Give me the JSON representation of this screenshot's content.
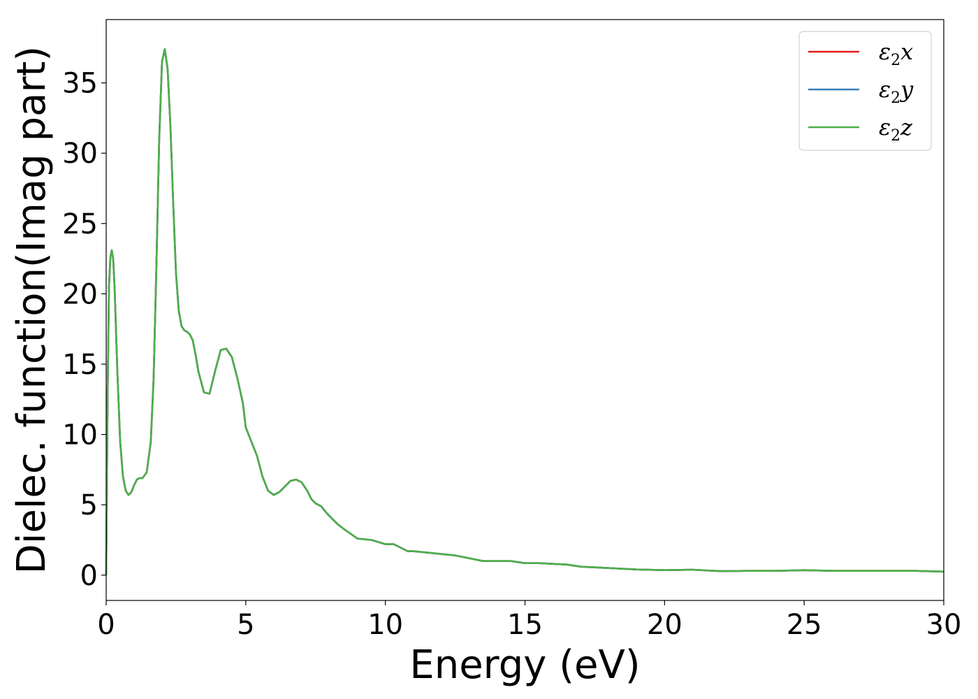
{
  "chart_data": {
    "type": "line",
    "xlabel": "Energy (eV)",
    "ylabel": "Dielec. function(Imag part)",
    "xlim": [
      0,
      30
    ],
    "ylim": [
      -1.8,
      39.5
    ],
    "xticks": [
      0,
      5,
      10,
      15,
      20,
      25,
      30
    ],
    "yticks": [
      0,
      5,
      10,
      15,
      20,
      25,
      30,
      35
    ],
    "grid": false,
    "legend": "top-right",
    "x": [
      0,
      0.05,
      0.1,
      0.15,
      0.2,
      0.25,
      0.3,
      0.4,
      0.5,
      0.6,
      0.7,
      0.8,
      0.9,
      1.0,
      1.1,
      1.2,
      1.3,
      1.45,
      1.6,
      1.7,
      1.8,
      1.9,
      2.0,
      2.1,
      2.2,
      2.3,
      2.4,
      2.5,
      2.6,
      2.7,
      2.8,
      2.9,
      3.0,
      3.1,
      3.2,
      3.3,
      3.5,
      3.7,
      3.9,
      4.1,
      4.3,
      4.5,
      4.7,
      4.9,
      5.0,
      5.2,
      5.4,
      5.6,
      5.8,
      6.0,
      6.2,
      6.4,
      6.6,
      6.8,
      7.0,
      7.2,
      7.35,
      7.5,
      7.7,
      7.9,
      8.1,
      8.3,
      8.5,
      9.0,
      9.5,
      10.0,
      10.3,
      10.5,
      10.8,
      11.0,
      11.5,
      12.0,
      12.5,
      13.0,
      13.5,
      14.0,
      14.5,
      15.0,
      15.5,
      16.0,
      16.5,
      17.0,
      18.0,
      19.0,
      20.0,
      21.0,
      22.0,
      23.0,
      24.0,
      25.0,
      26.0,
      27.0,
      28.0,
      29.0,
      30.0
    ],
    "series": [
      {
        "name": "ε₂x",
        "color": "#e41a1c",
        "values": [
          0,
          12.5,
          20.5,
          22.6,
          23.1,
          22.5,
          20.5,
          14.5,
          9.5,
          7.0,
          6.0,
          5.7,
          5.9,
          6.4,
          6.8,
          6.9,
          6.9,
          7.3,
          9.5,
          14.0,
          22.0,
          31.0,
          36.5,
          37.4,
          36.0,
          32.0,
          26.5,
          21.5,
          18.8,
          17.7,
          17.4,
          17.3,
          17.1,
          16.7,
          15.7,
          14.5,
          13.0,
          12.9,
          14.5,
          16.0,
          16.1,
          15.5,
          14.0,
          12.2,
          10.5,
          9.5,
          8.5,
          7.0,
          6.0,
          5.7,
          5.9,
          6.3,
          6.7,
          6.8,
          6.6,
          6.0,
          5.4,
          5.1,
          4.9,
          4.4,
          4.0,
          3.6,
          3.3,
          2.6,
          2.5,
          2.2,
          2.2,
          2.0,
          1.7,
          1.7,
          1.6,
          1.5,
          1.4,
          1.2,
          1.0,
          1.0,
          1.0,
          0.85,
          0.85,
          0.8,
          0.75,
          0.6,
          0.5,
          0.4,
          0.35,
          0.38,
          0.28,
          0.3,
          0.3,
          0.35,
          0.3,
          0.3,
          0.3,
          0.3,
          0.25
        ]
      },
      {
        "name": "ε₂y",
        "color": "#377eb8",
        "values": [
          0,
          12.5,
          20.5,
          22.6,
          23.1,
          22.5,
          20.5,
          14.5,
          9.5,
          7.0,
          6.0,
          5.7,
          5.9,
          6.4,
          6.8,
          6.9,
          6.9,
          7.3,
          9.5,
          14.0,
          22.0,
          31.0,
          36.5,
          37.4,
          36.0,
          32.0,
          26.5,
          21.5,
          18.8,
          17.7,
          17.4,
          17.3,
          17.1,
          16.7,
          15.7,
          14.5,
          13.0,
          12.9,
          14.5,
          16.0,
          16.1,
          15.5,
          14.0,
          12.2,
          10.5,
          9.5,
          8.5,
          7.0,
          6.0,
          5.7,
          5.9,
          6.3,
          6.7,
          6.8,
          6.6,
          6.0,
          5.4,
          5.1,
          4.9,
          4.4,
          4.0,
          3.6,
          3.3,
          2.6,
          2.5,
          2.2,
          2.2,
          2.0,
          1.7,
          1.7,
          1.6,
          1.5,
          1.4,
          1.2,
          1.0,
          1.0,
          1.0,
          0.85,
          0.85,
          0.8,
          0.75,
          0.6,
          0.5,
          0.4,
          0.35,
          0.38,
          0.28,
          0.3,
          0.3,
          0.35,
          0.3,
          0.3,
          0.3,
          0.3,
          0.25
        ]
      },
      {
        "name": "ε₂z",
        "color": "#4daf4a",
        "values": [
          0,
          12.5,
          20.5,
          22.6,
          23.1,
          22.5,
          20.5,
          14.5,
          9.5,
          7.0,
          6.0,
          5.7,
          5.9,
          6.4,
          6.8,
          6.9,
          6.9,
          7.3,
          9.5,
          14.0,
          22.0,
          31.0,
          36.5,
          37.4,
          36.0,
          32.0,
          26.5,
          21.5,
          18.8,
          17.7,
          17.4,
          17.3,
          17.1,
          16.7,
          15.7,
          14.5,
          13.0,
          12.9,
          14.5,
          16.0,
          16.1,
          15.5,
          14.0,
          12.2,
          10.5,
          9.5,
          8.5,
          7.0,
          6.0,
          5.7,
          5.9,
          6.3,
          6.7,
          6.8,
          6.6,
          6.0,
          5.4,
          5.1,
          4.9,
          4.4,
          4.0,
          3.6,
          3.3,
          2.6,
          2.5,
          2.2,
          2.2,
          2.0,
          1.7,
          1.7,
          1.6,
          1.5,
          1.4,
          1.2,
          1.0,
          1.0,
          1.0,
          0.85,
          0.85,
          0.8,
          0.75,
          0.6,
          0.5,
          0.4,
          0.35,
          0.38,
          0.28,
          0.3,
          0.3,
          0.35,
          0.3,
          0.3,
          0.3,
          0.3,
          0.25
        ]
      }
    ],
    "legend_entries": [
      {
        "base": "ε",
        "sub": "2",
        "axis": "x",
        "color": "#e41a1c"
      },
      {
        "base": "ε",
        "sub": "2",
        "axis": "y",
        "color": "#377eb8"
      },
      {
        "base": "ε",
        "sub": "2",
        "axis": "z",
        "color": "#4daf4a"
      }
    ]
  }
}
